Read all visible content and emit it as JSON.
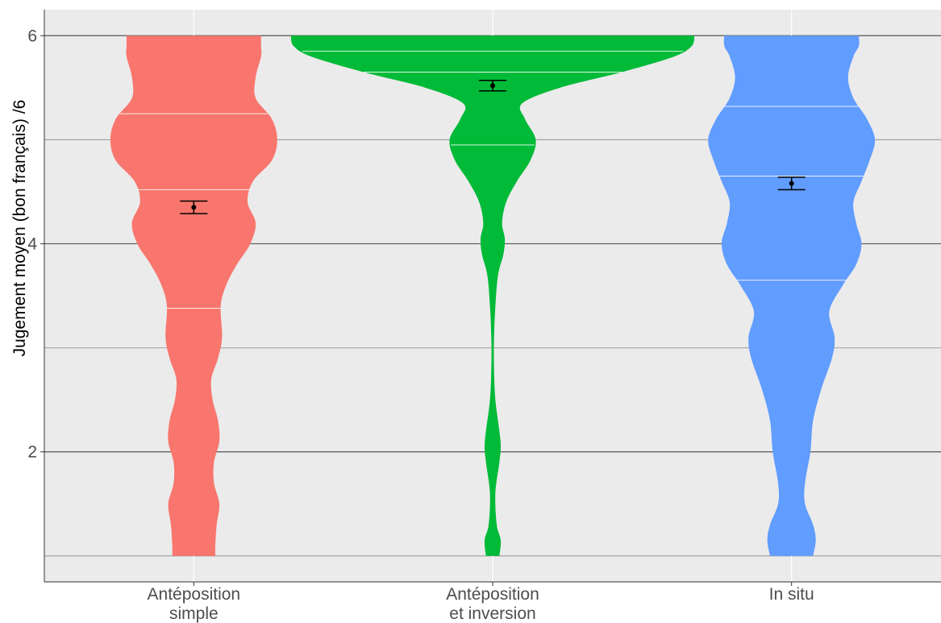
{
  "chart_data": {
    "type": "violin",
    "ylabel": "Jugement moyen (bon français) /6",
    "ylim": [
      0.75,
      6.25
    ],
    "y_ticks": [
      2,
      4,
      6
    ],
    "y_tick_labels": [
      "2",
      "4",
      "6"
    ],
    "y_minor": [
      1,
      3,
      5
    ],
    "grid": true,
    "categories": [
      {
        "lines": [
          "Antéposition",
          "simple"
        ]
      },
      {
        "lines": [
          "Antéposition",
          "et inversion"
        ]
      },
      {
        "lines": [
          "In situ"
        ]
      }
    ],
    "series": [
      {
        "category": "Antéposition simple",
        "color": "#F8766D",
        "quantiles": [
          3.38,
          4.52,
          5.25
        ],
        "mean": 4.35,
        "ci": [
          4.29,
          4.41
        ],
        "density_profile": [
          [
            1.0,
            0.16
          ],
          [
            1.1,
            0.16
          ],
          [
            1.3,
            0.17
          ],
          [
            1.5,
            0.19
          ],
          [
            1.7,
            0.15
          ],
          [
            1.9,
            0.15
          ],
          [
            2.1,
            0.19
          ],
          [
            2.3,
            0.18
          ],
          [
            2.5,
            0.14
          ],
          [
            2.7,
            0.13
          ],
          [
            2.9,
            0.18
          ],
          [
            3.1,
            0.21
          ],
          [
            3.4,
            0.2
          ],
          [
            3.6,
            0.24
          ],
          [
            3.8,
            0.32
          ],
          [
            4.0,
            0.42
          ],
          [
            4.2,
            0.46
          ],
          [
            4.4,
            0.4
          ],
          [
            4.6,
            0.44
          ],
          [
            4.8,
            0.58
          ],
          [
            5.0,
            0.62
          ],
          [
            5.2,
            0.58
          ],
          [
            5.4,
            0.46
          ],
          [
            5.6,
            0.46
          ],
          [
            5.8,
            0.5
          ],
          [
            5.9,
            0.5
          ],
          [
            6.0,
            0.5
          ]
        ]
      },
      {
        "category": "Antéposition et inversion",
        "color": "#00BA38",
        "quantiles": [
          4.95,
          5.65,
          5.85
        ],
        "mean": 5.52,
        "ci": [
          5.47,
          5.57
        ],
        "density_profile": [
          [
            1.0,
            0.05
          ],
          [
            1.15,
            0.06
          ],
          [
            1.3,
            0.03
          ],
          [
            1.6,
            0.02
          ],
          [
            1.9,
            0.05
          ],
          [
            2.05,
            0.06
          ],
          [
            2.2,
            0.05
          ],
          [
            2.5,
            0.02
          ],
          [
            2.8,
            0.01
          ],
          [
            3.1,
            0.01
          ],
          [
            3.4,
            0.02
          ],
          [
            3.7,
            0.04
          ],
          [
            3.9,
            0.08
          ],
          [
            4.05,
            0.09
          ],
          [
            4.2,
            0.07
          ],
          [
            4.4,
            0.1
          ],
          [
            4.6,
            0.18
          ],
          [
            4.8,
            0.28
          ],
          [
            5.0,
            0.32
          ],
          [
            5.2,
            0.24
          ],
          [
            5.35,
            0.22
          ],
          [
            5.5,
            0.5
          ],
          [
            5.65,
            0.96
          ],
          [
            5.8,
            1.35
          ],
          [
            5.9,
            1.48
          ],
          [
            6.0,
            1.5
          ]
        ]
      },
      {
        "category": "In situ",
        "color": "#619CFF",
        "quantiles": [
          3.65,
          4.65,
          5.32
        ],
        "mean": 4.58,
        "ci": [
          4.52,
          4.64
        ],
        "density_profile": [
          [
            1.0,
            0.16
          ],
          [
            1.15,
            0.18
          ],
          [
            1.3,
            0.16
          ],
          [
            1.5,
            0.1
          ],
          [
            1.7,
            0.1
          ],
          [
            2.0,
            0.14
          ],
          [
            2.3,
            0.16
          ],
          [
            2.6,
            0.22
          ],
          [
            2.9,
            0.3
          ],
          [
            3.1,
            0.32
          ],
          [
            3.35,
            0.28
          ],
          [
            3.6,
            0.38
          ],
          [
            3.8,
            0.48
          ],
          [
            4.0,
            0.52
          ],
          [
            4.2,
            0.48
          ],
          [
            4.4,
            0.46
          ],
          [
            4.6,
            0.52
          ],
          [
            4.8,
            0.58
          ],
          [
            5.0,
            0.62
          ],
          [
            5.2,
            0.56
          ],
          [
            5.4,
            0.46
          ],
          [
            5.6,
            0.42
          ],
          [
            5.8,
            0.46
          ],
          [
            5.9,
            0.5
          ],
          [
            6.0,
            0.5
          ]
        ]
      }
    ]
  }
}
